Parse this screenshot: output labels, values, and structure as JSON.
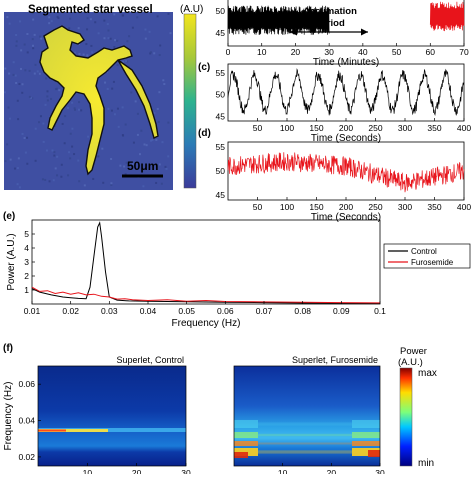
{
  "panel_a": {
    "title": "Segmented star vessel",
    "colorbar_label": "(A.U)",
    "scalebar_label": "50μm"
  },
  "panel_b": {
    "acclimation_label_1": "Acclimation",
    "acclimation_label_2": "Period",
    "y_ticks": [
      "50",
      "45"
    ],
    "x_ticks": [
      "0",
      "10",
      "20",
      "30",
      "40",
      "50",
      "60",
      "70"
    ],
    "x_label": "Time (Minutes)",
    "colors": {
      "control": "#000000",
      "furosemide": "#e8141b"
    }
  },
  "panel_c": {
    "label": "(c)",
    "y_ticks": [
      "55",
      "50",
      "45"
    ],
    "x_ticks": [
      "50",
      "100",
      "150",
      "200",
      "250",
      "300",
      "350",
      "400"
    ],
    "x_label": "Time (Seconds)"
  },
  "panel_d": {
    "label": "(d)",
    "y_ticks": [
      "55",
      "50",
      "45"
    ],
    "x_ticks": [
      "50",
      "100",
      "150",
      "200",
      "250",
      "300",
      "350",
      "400"
    ],
    "x_label": "Time (Seconds)"
  },
  "panel_e": {
    "label": "(e)",
    "y_label": "Power (A.U.)",
    "y_ticks": [
      "5",
      "4",
      "3",
      "2",
      "1"
    ],
    "x_ticks": [
      "0.01",
      "0.02",
      "0.03",
      "0.04",
      "0.05",
      "0.06",
      "0.07",
      "0.08",
      "0.09",
      "0.1"
    ],
    "x_label": "Frequency (Hz)",
    "legend": [
      "Control",
      "Furosemide"
    ]
  },
  "panel_f": {
    "label": "(f)",
    "y_label": "Frequency (Hz)",
    "y_ticks": [
      "0.06",
      "0.04",
      "0.02"
    ],
    "x_ticks": [
      "10",
      "20",
      "30"
    ],
    "titles": [
      "Superlet, Control",
      "Superlet, Furosemide"
    ],
    "colorbar_title_1": "Power",
    "colorbar_title_2": "(A.U.)",
    "colorbar_max": "max",
    "colorbar_min": "min"
  },
  "chart_data": [
    {
      "type": "line",
      "panel": "b",
      "xlabel": "Time (Minutes)",
      "xlim": [
        0,
        70
      ],
      "ylim": [
        43,
        56
      ],
      "annotation": "Acclimation Period",
      "series": [
        {
          "x_range": [
            0,
            30
          ],
          "mean": 50,
          "amplitude": 4
        },
        {
          "x_range": [
            60,
            70
          ],
          "mean": 51,
          "amplitude": 4
        }
      ]
    },
    {
      "type": "line",
      "panel": "c",
      "xlabel": "Time (Seconds)",
      "xlim": [
        0,
        400
      ],
      "ylim": [
        44,
        57
      ],
      "series": [
        {
          "period_s": 36,
          "mean": 50.5,
          "amplitude": 4,
          "noise": 0.8
        }
      ]
    },
    {
      "type": "line",
      "panel": "d",
      "xlabel": "Time (Seconds)",
      "xlim": [
        0,
        400
      ],
      "ylim": [
        44,
        56
      ],
      "series": [
        {
          "trend": [
            [
              0,
              51
            ],
            [
              100,
              52
            ],
            [
              200,
              51
            ],
            [
              300,
              47.5
            ],
            [
              400,
              50
            ]
          ],
          "noise": 2
        }
      ]
    },
    {
      "type": "line",
      "panel": "e",
      "xlabel": "Frequency (Hz)",
      "ylabel": "Power (A.U.)",
      "xlim": [
        0.01,
        0.1
      ],
      "ylim": [
        0,
        6
      ],
      "series": [
        {
          "name": "Control",
          "x": [
            0.01,
            0.012,
            0.015,
            0.018,
            0.02,
            0.022,
            0.024,
            0.025,
            0.026,
            0.027,
            0.0275,
            0.028,
            0.029,
            0.03,
            0.032,
            0.035,
            0.04,
            0.05,
            0.06,
            0.07,
            0.08,
            0.09,
            0.1
          ],
          "y": [
            1.1,
            0.85,
            0.65,
            0.5,
            0.45,
            0.4,
            0.38,
            1.2,
            3.4,
            5.5,
            5.8,
            4.8,
            2.3,
            0.5,
            0.28,
            0.22,
            0.2,
            0.16,
            0.12,
            0.1,
            0.07,
            0.05,
            0.04
          ]
        },
        {
          "name": "Furosemide",
          "x": [
            0.01,
            0.012,
            0.014,
            0.016,
            0.018,
            0.02,
            0.022,
            0.024,
            0.026,
            0.028,
            0.03,
            0.032,
            0.034,
            0.036,
            0.04,
            0.045,
            0.05,
            0.055,
            0.06,
            0.07,
            0.08,
            0.09,
            0.1
          ],
          "y": [
            1.2,
            0.9,
            0.95,
            0.75,
            0.85,
            0.7,
            0.8,
            0.65,
            0.7,
            0.55,
            0.5,
            0.35,
            0.38,
            0.3,
            0.25,
            0.3,
            0.2,
            0.25,
            0.18,
            0.15,
            0.12,
            0.1,
            0.08
          ]
        }
      ]
    },
    {
      "type": "heatmap",
      "panel": "f",
      "title": "Superlet, Control",
      "ylabel": "Frequency (Hz)",
      "xlim": [
        0,
        30
      ],
      "ylim": [
        0.015,
        0.07
      ],
      "dominant_frequency_hz": 0.027
    },
    {
      "type": "heatmap",
      "panel": "f",
      "title": "Superlet, Furosemide",
      "xlim": [
        0,
        30
      ],
      "ylim": [
        0.015,
        0.07
      ],
      "dominant_frequency_hz": 0.02
    }
  ]
}
